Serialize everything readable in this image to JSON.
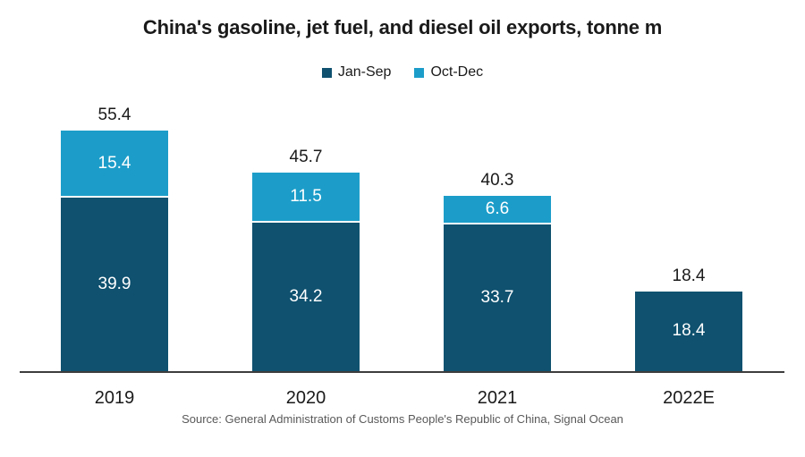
{
  "title": "China's gasoline, jet fuel, and diesel oil exports, tonne m",
  "legend": [
    {
      "label": "Jan-Sep",
      "color": "#0f516f"
    },
    {
      "label": "Oct-Dec",
      "color": "#1c9dc9"
    }
  ],
  "source": "Source: General Administration of Customs People's Republic of China, Signal Ocean",
  "chart_data": {
    "type": "bar",
    "stacked": true,
    "title": "China's gasoline, jet fuel, and diesel oil exports, tonne m",
    "categories": [
      "2019",
      "2020",
      "2021",
      "2022E"
    ],
    "series": [
      {
        "name": "Jan-Sep",
        "color": "#0f516f",
        "values": [
          39.9,
          34.2,
          33.7,
          18.4
        ]
      },
      {
        "name": "Oct-Dec",
        "color": "#1c9dc9",
        "values": [
          15.4,
          11.5,
          6.6,
          0
        ]
      }
    ],
    "totals": [
      55.4,
      45.7,
      40.3,
      18.4
    ],
    "xlabel": "",
    "ylabel": "tonne m",
    "ylim": [
      0,
      60
    ],
    "grid": false,
    "legend_position": "top",
    "value_labels": "inside-white",
    "total_labels": "above-black"
  }
}
